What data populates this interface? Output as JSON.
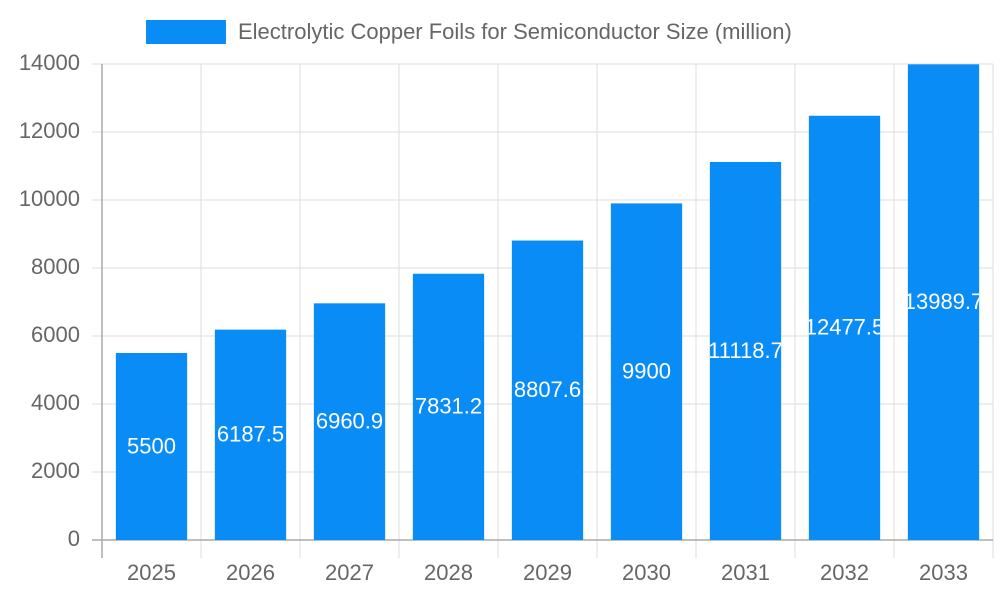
{
  "chart_data": {
    "type": "bar",
    "categories": [
      "2025",
      "2026",
      "2027",
      "2028",
      "2029",
      "2030",
      "2031",
      "2032",
      "2033"
    ],
    "series": [
      {
        "name": "Electrolytic Copper Foils for Semiconductor Size (million)",
        "color": "#0a8cf7",
        "values": [
          5500,
          6187.5,
          6960.9,
          7831.2,
          8807.6,
          9900,
          11118.7,
          12477.5,
          13989.7
        ]
      }
    ],
    "ylim": [
      0,
      14000
    ],
    "yticks": [
      0,
      2000,
      4000,
      6000,
      8000,
      10000,
      12000,
      14000
    ],
    "grid": true,
    "legend": "top"
  }
}
